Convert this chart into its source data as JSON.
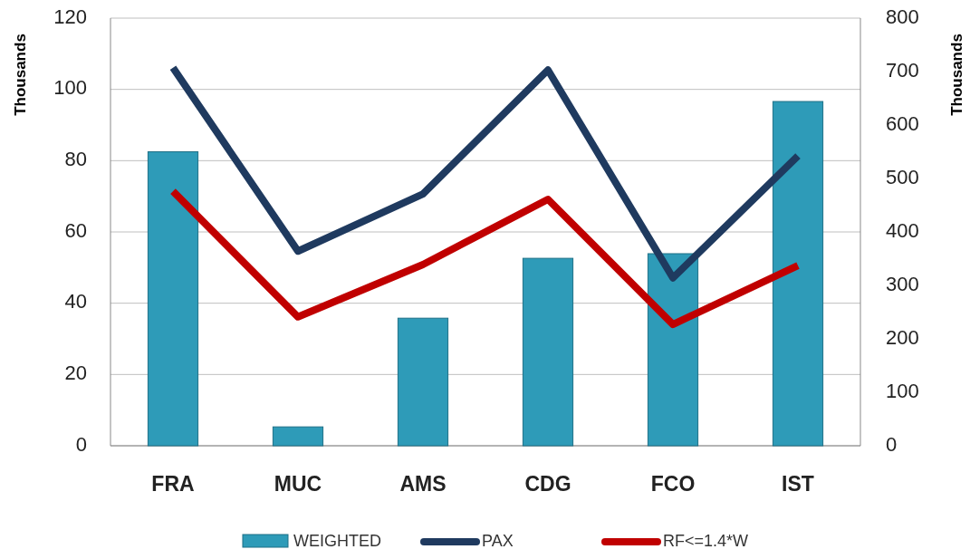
{
  "chart_data": {
    "type": "bar",
    "categories": [
      "FRA",
      "MUC",
      "AMS",
      "CDG",
      "FCO",
      "IST"
    ],
    "series": [
      {
        "name": "WEIGHTED",
        "color": "#2e9bb8",
        "values": [
          82.5,
          5.3,
          35.8,
          52.6,
          53.9,
          96.6
        ]
      },
      {
        "name": "PAX",
        "type": "line",
        "axis": "y2",
        "color": "#1f3a5f",
        "values": [
          707,
          364,
          471,
          703,
          314,
          542
        ]
      },
      {
        "name": "RF<=1.4*W",
        "type": "line",
        "axis": "y2",
        "color": "#c00000",
        "values": [
          476,
          241,
          339,
          461,
          227,
          337
        ]
      }
    ],
    "ylabel": "Thousands",
    "y2label": "Thousands",
    "ylim": [
      0,
      120
    ],
    "yticks": [
      0,
      20,
      40,
      60,
      80,
      100,
      120
    ],
    "y2lim": [
      0,
      800
    ],
    "y2ticks": [
      0,
      100,
      200,
      300,
      400,
      500,
      600,
      700,
      800
    ],
    "grid": "y",
    "legend": "bottom",
    "line_style": "solid",
    "marker": "none"
  }
}
